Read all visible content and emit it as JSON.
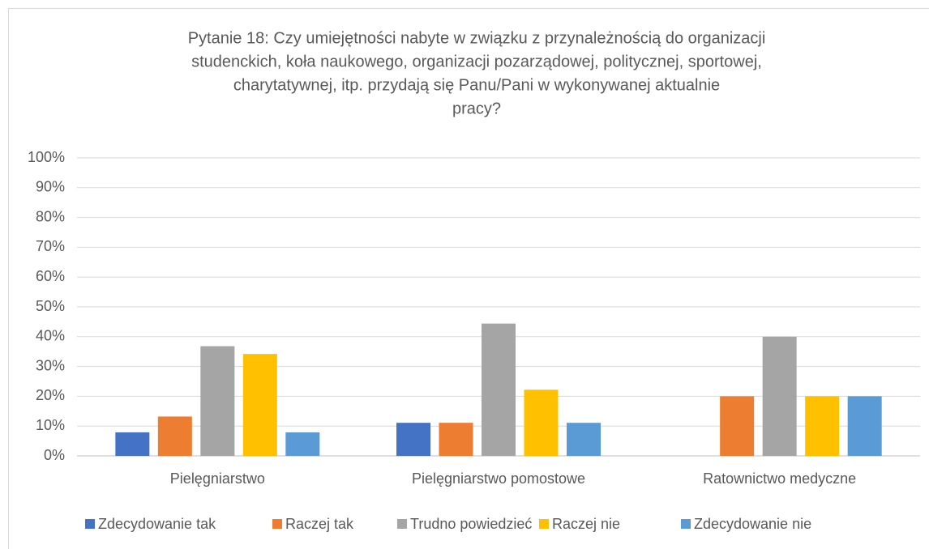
{
  "chart_data": {
    "type": "bar",
    "title": [
      "Pytanie 18: Czy umiejętności nabyte w związku z przynależnością do organizacji",
      "studenckich, koła naukowego, organizacji pozarządowej, politycznej, sportowej,",
      "charytatywnej, itp. przydają się Panu/Pani w wykonywanej aktualnie",
      "pracy?"
    ],
    "categories": [
      "Pielęgniarstwo",
      "Pielęgniarstwo pomostowe",
      "Ratownictwo medyczne"
    ],
    "series": [
      {
        "name": "Zdecydowanie tak",
        "color": "#4472c4",
        "values": [
          7.9,
          11.1,
          0
        ]
      },
      {
        "name": "Raczej tak",
        "color": "#ed7d31",
        "values": [
          13.2,
          11.1,
          20
        ]
      },
      {
        "name": "Trudno powiedzieć",
        "color": "#a5a5a5",
        "values": [
          36.8,
          44.4,
          40
        ]
      },
      {
        "name": "Raczej nie",
        "color": "#ffc000",
        "values": [
          34.2,
          22.2,
          20
        ]
      },
      {
        "name": "Zdecydowanie nie",
        "color": "#5b9bd5",
        "values": [
          7.9,
          11.1,
          20
        ]
      }
    ],
    "ylim": [
      0,
      100
    ],
    "yticks": [
      {
        "value": 0,
        "label": "0%"
      },
      {
        "value": 10,
        "label": "10%"
      },
      {
        "value": 20,
        "label": "20%"
      },
      {
        "value": 30,
        "label": "30%"
      },
      {
        "value": 40,
        "label": "40%"
      },
      {
        "value": 50,
        "label": "50%"
      },
      {
        "value": 60,
        "label": "60%"
      },
      {
        "value": 70,
        "label": "70%"
      },
      {
        "value": 80,
        "label": "80%"
      },
      {
        "value": 90,
        "label": "90%"
      },
      {
        "value": 100,
        "label": "100%"
      }
    ],
    "grid": true,
    "legend": "bottom"
  }
}
